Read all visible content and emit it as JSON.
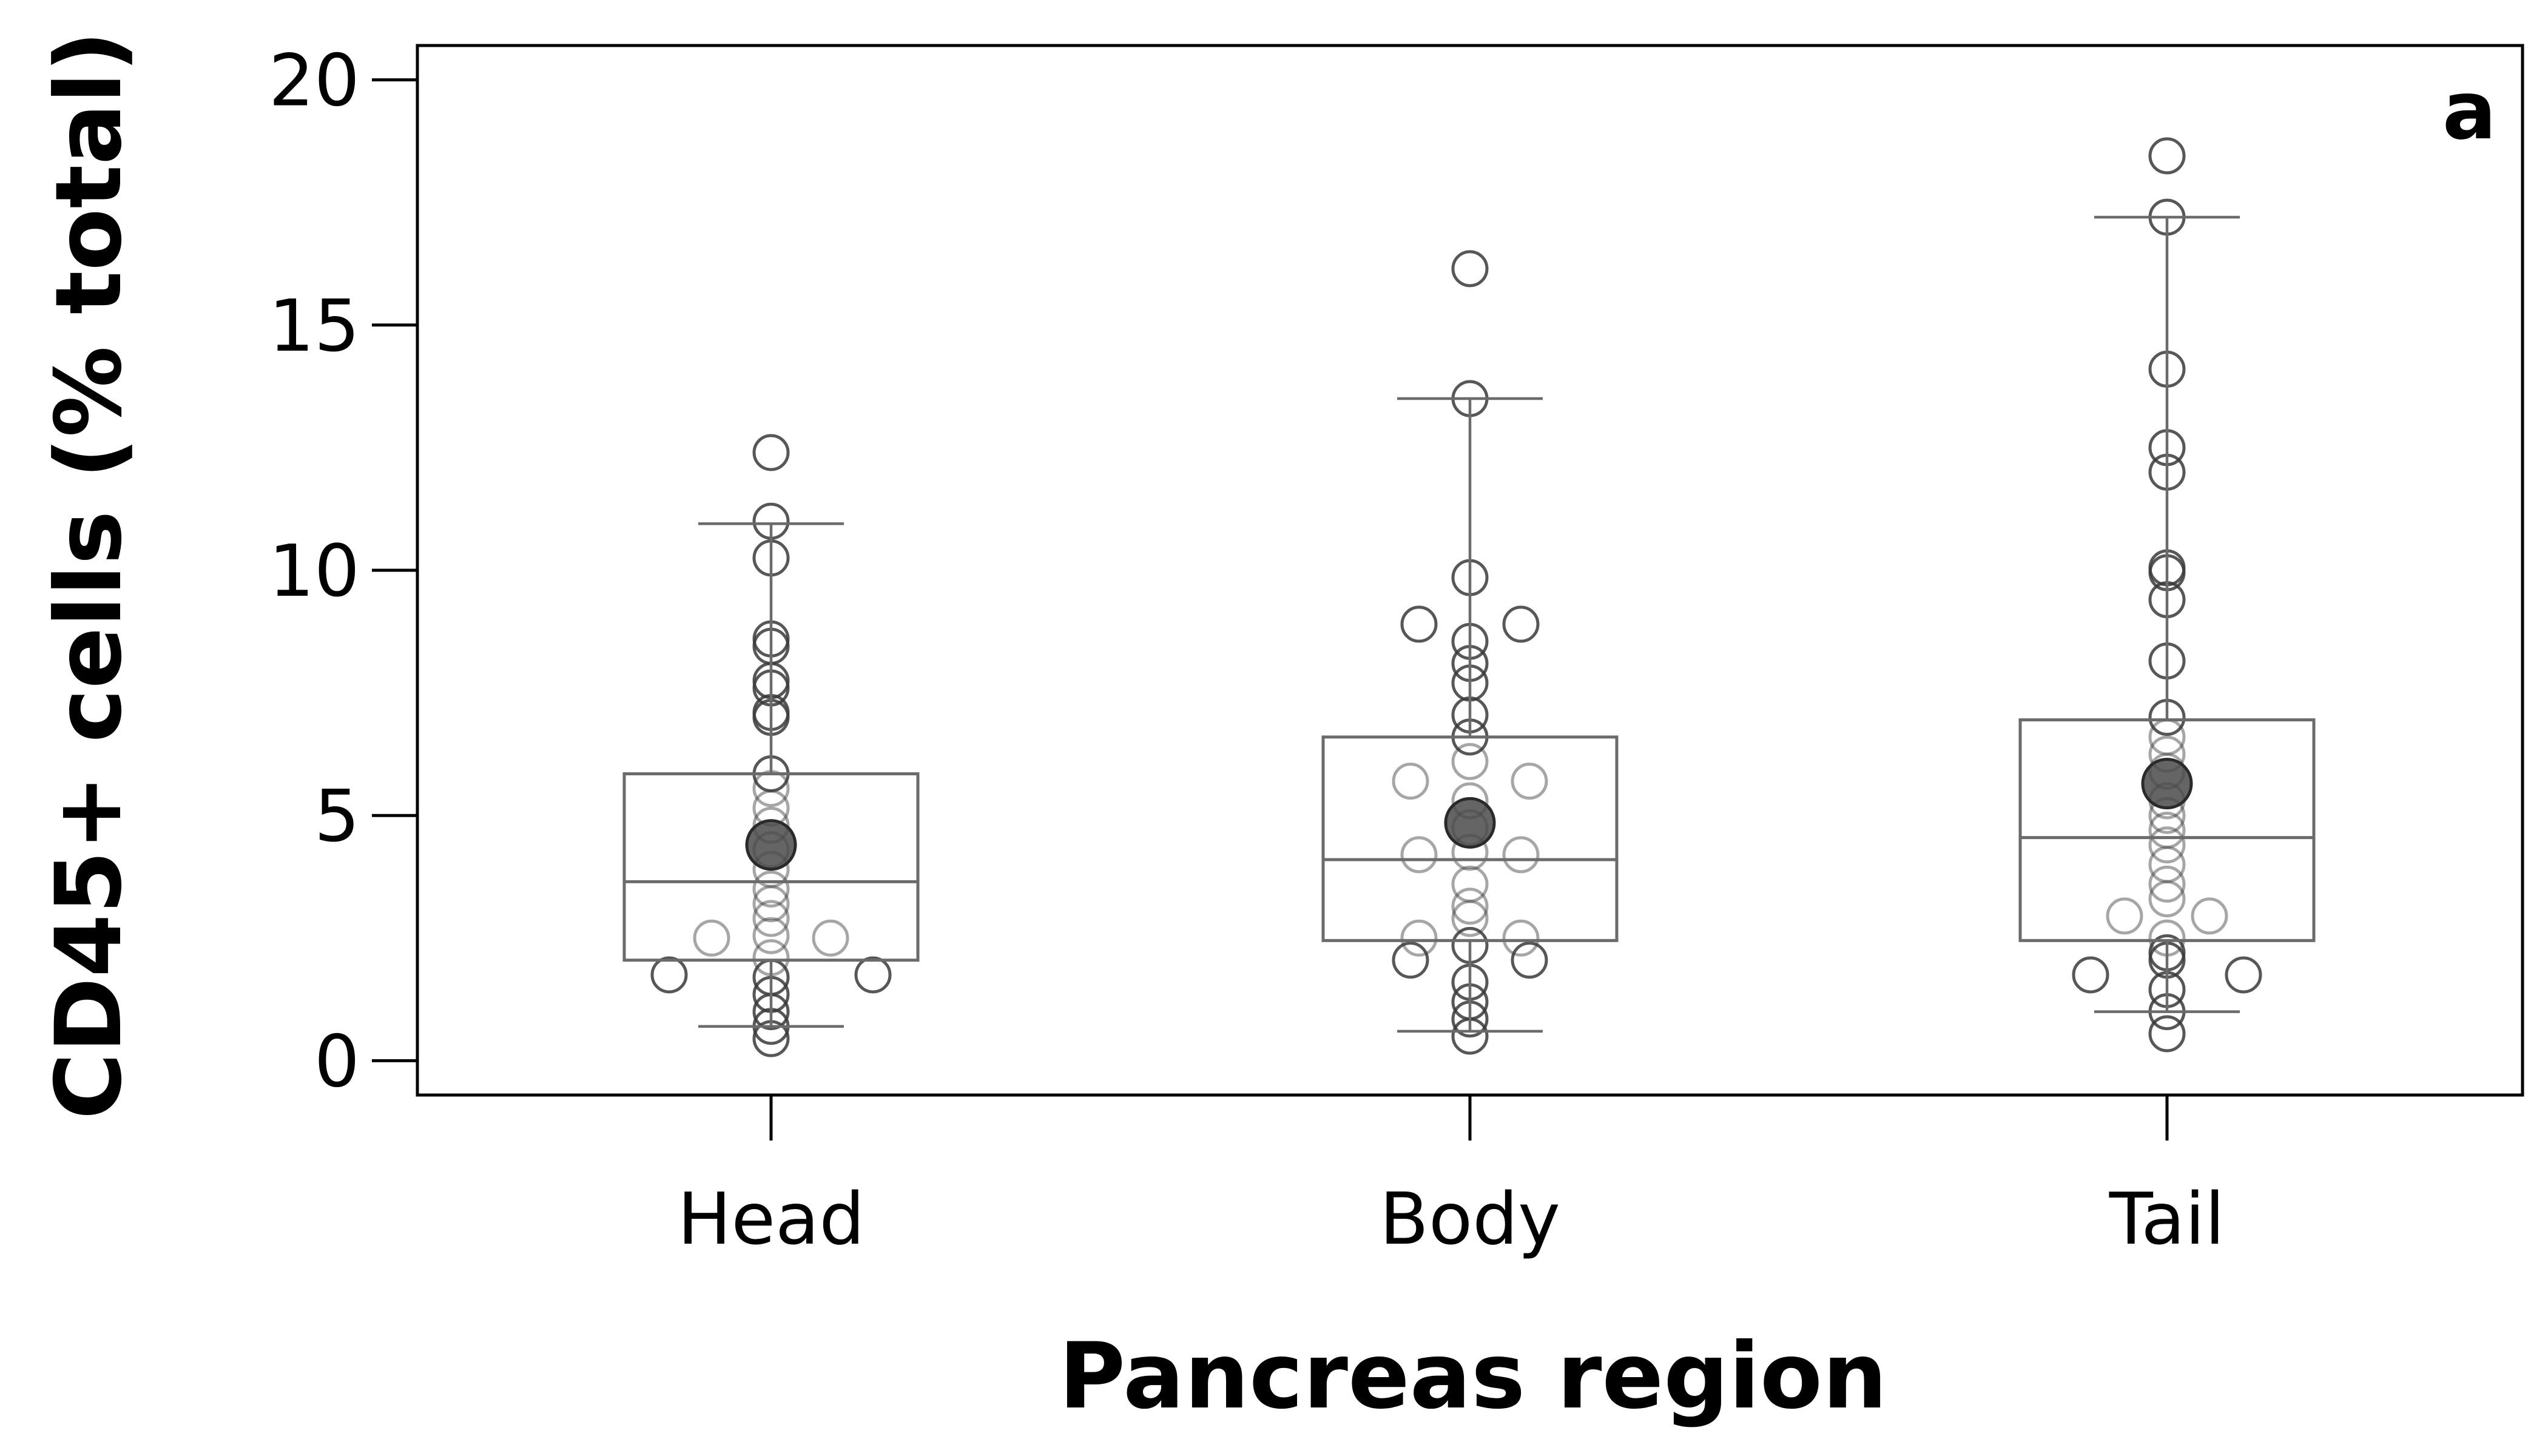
{
  "chart_data": {
    "type": "box",
    "title": "",
    "panel_label": "a",
    "xlabel": "Pancreas region",
    "ylabel": "CD45+ cells (% total)",
    "categories": [
      "Head",
      "Body",
      "Tail"
    ],
    "ylim": [
      -0.7,
      20.7
    ],
    "yticks": [
      0,
      5,
      10,
      15,
      20
    ],
    "grid": false,
    "legend": "none",
    "colors": {
      "box": "#6b6b6b",
      "point": "#3a3a3a",
      "mean": "#4a4a4a",
      "frame": "#000000"
    },
    "boxes": [
      {
        "category": "Head",
        "q1": 2.05,
        "median": 3.65,
        "q3": 5.85,
        "whisker_low": 0.7,
        "whisker_high": 10.95,
        "mean": 4.4,
        "points": [
          [
            0,
            12.4
          ],
          [
            0,
            11.0
          ],
          [
            0,
            10.25
          ],
          [
            0,
            8.6
          ],
          [
            0,
            8.45
          ],
          [
            0,
            7.75
          ],
          [
            0,
            7.6
          ],
          [
            0,
            7.1
          ],
          [
            0,
            7.0
          ],
          [
            0,
            5.85
          ],
          [
            0,
            5.55
          ],
          [
            0,
            5.15
          ],
          [
            0,
            4.8
          ],
          [
            0,
            4.3
          ],
          [
            0,
            3.9
          ],
          [
            0,
            3.5
          ],
          [
            0,
            3.2
          ],
          [
            0,
            2.9
          ],
          [
            0,
            2.55
          ],
          [
            -0.07,
            2.5
          ],
          [
            0.07,
            2.5
          ],
          [
            0,
            2.1
          ],
          [
            -0.12,
            1.75
          ],
          [
            0.12,
            1.75
          ],
          [
            0,
            1.7
          ],
          [
            0,
            1.35
          ],
          [
            0,
            1.0
          ],
          [
            0,
            0.7
          ],
          [
            0,
            0.45
          ]
        ]
      },
      {
        "category": "Body",
        "q1": 2.45,
        "median": 4.1,
        "q3": 6.6,
        "whisker_low": 0.6,
        "whisker_high": 13.5,
        "mean": 4.85,
        "points": [
          [
            0,
            16.15
          ],
          [
            0,
            13.5
          ],
          [
            0,
            9.85
          ],
          [
            -0.06,
            8.9
          ],
          [
            0.06,
            8.9
          ],
          [
            0,
            8.55
          ],
          [
            0,
            8.1
          ],
          [
            0,
            7.7
          ],
          [
            0,
            7.05
          ],
          [
            0,
            6.6
          ],
          [
            0,
            6.1
          ],
          [
            -0.07,
            5.7
          ],
          [
            0.07,
            5.7
          ],
          [
            0,
            5.3
          ],
          [
            0,
            4.75
          ],
          [
            0,
            4.25
          ],
          [
            -0.06,
            4.2
          ],
          [
            0.06,
            4.2
          ],
          [
            0,
            3.6
          ],
          [
            0,
            3.15
          ],
          [
            0,
            2.9
          ],
          [
            -0.06,
            2.5
          ],
          [
            0.06,
            2.5
          ],
          [
            0,
            2.35
          ],
          [
            -0.07,
            2.05
          ],
          [
            0.07,
            2.05
          ],
          [
            0,
            1.6
          ],
          [
            0,
            1.2
          ],
          [
            0,
            0.85
          ],
          [
            0,
            0.5
          ]
        ]
      },
      {
        "category": "Tail",
        "q1": 2.45,
        "median": 4.55,
        "q3": 6.95,
        "whisker_low": 1.0,
        "whisker_high": 17.2,
        "mean": 5.65,
        "points": [
          [
            0,
            18.45
          ],
          [
            0,
            17.2
          ],
          [
            0,
            14.1
          ],
          [
            0,
            12.5
          ],
          [
            0,
            12.0
          ],
          [
            0,
            10.05
          ],
          [
            0,
            9.95
          ],
          [
            0,
            9.4
          ],
          [
            0,
            8.15
          ],
          [
            0,
            7.0
          ],
          [
            0,
            6.6
          ],
          [
            0,
            6.25
          ],
          [
            0,
            5.9
          ],
          [
            0,
            5.3
          ],
          [
            0,
            5.0
          ],
          [
            0,
            4.7
          ],
          [
            0,
            4.4
          ],
          [
            0,
            4.0
          ],
          [
            0,
            3.6
          ],
          [
            0,
            3.3
          ],
          [
            -0.05,
            2.95
          ],
          [
            0.05,
            2.95
          ],
          [
            0,
            2.5
          ],
          [
            0,
            2.2
          ],
          [
            0,
            2.05
          ],
          [
            -0.09,
            1.75
          ],
          [
            0.09,
            1.75
          ],
          [
            0,
            1.45
          ],
          [
            0,
            1.0
          ],
          [
            0,
            0.55
          ]
        ]
      }
    ]
  }
}
